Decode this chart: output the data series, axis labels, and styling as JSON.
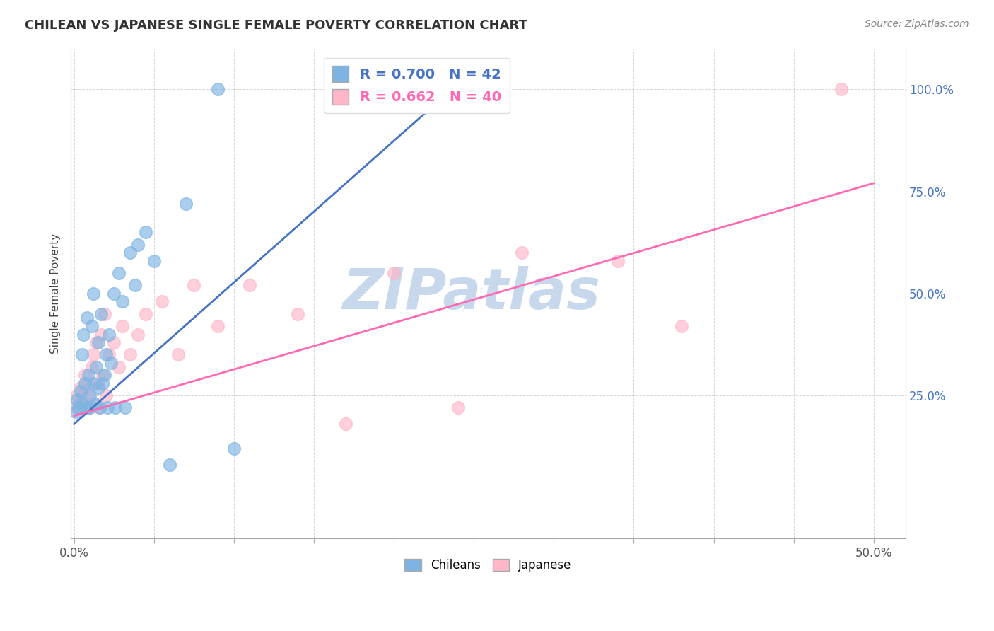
{
  "title": "CHILEAN VS JAPANESE SINGLE FEMALE POVERTY CORRELATION CHART",
  "source_text": "Source: ZipAtlas.com",
  "xlabel_ticks": [
    "0.0%",
    "",
    "",
    "",
    "",
    "",
    "",
    "",
    "",
    "",
    "50.0%"
  ],
  "x_tick_vals": [
    0.0,
    0.05,
    0.1,
    0.15,
    0.2,
    0.25,
    0.3,
    0.35,
    0.4,
    0.45,
    0.5
  ],
  "ylabel_ticks": [
    "25.0%",
    "50.0%",
    "75.0%",
    "100.0%"
  ],
  "y_tick_vals": [
    0.25,
    0.5,
    0.75,
    1.0
  ],
  "xlim": [
    -0.002,
    0.52
  ],
  "ylim": [
    -0.1,
    1.1
  ],
  "ylabel": "Single Female Poverty",
  "legend_blue_label": "R = 0.700   N = 42",
  "legend_pink_label": "R = 0.662   N = 40",
  "chilean_color": "#7EB4E2",
  "japanese_color": "#FFB6C8",
  "trendline_blue": "#4472C4",
  "trendline_pink": "#FF69B4",
  "background_color": "#FFFFFF",
  "grid_color": "#CCCCCC",
  "watermark_text": "ZIPatlas",
  "watermark_color": "#C8D8EC",
  "title_color": "#333333",
  "source_color": "#888888",
  "axis_label_color": "#444444",
  "ytick_color": "#4472C4",
  "xtick_color": "#555555",
  "chilean_x": [
    0.001,
    0.002,
    0.003,
    0.004,
    0.005,
    0.005,
    0.006,
    0.007,
    0.008,
    0.008,
    0.009,
    0.01,
    0.01,
    0.011,
    0.012,
    0.012,
    0.013,
    0.014,
    0.015,
    0.015,
    0.016,
    0.017,
    0.018,
    0.019,
    0.02,
    0.021,
    0.022,
    0.023,
    0.025,
    0.026,
    0.028,
    0.03,
    0.032,
    0.035,
    0.038,
    0.04,
    0.045,
    0.05,
    0.06,
    0.07,
    0.09,
    0.1
  ],
  "chilean_y": [
    0.21,
    0.24,
    0.22,
    0.26,
    0.23,
    0.35,
    0.4,
    0.28,
    0.22,
    0.44,
    0.3,
    0.25,
    0.22,
    0.42,
    0.28,
    0.5,
    0.23,
    0.32,
    0.27,
    0.38,
    0.22,
    0.45,
    0.28,
    0.3,
    0.35,
    0.22,
    0.4,
    0.33,
    0.5,
    0.22,
    0.55,
    0.48,
    0.22,
    0.6,
    0.52,
    0.62,
    0.65,
    0.58,
    0.08,
    0.72,
    1.0,
    0.12
  ],
  "japanese_x": [
    0.001,
    0.002,
    0.003,
    0.004,
    0.005,
    0.006,
    0.007,
    0.008,
    0.009,
    0.01,
    0.011,
    0.012,
    0.013,
    0.014,
    0.015,
    0.016,
    0.017,
    0.018,
    0.019,
    0.02,
    0.022,
    0.025,
    0.028,
    0.03,
    0.035,
    0.04,
    0.045,
    0.055,
    0.065,
    0.075,
    0.09,
    0.11,
    0.14,
    0.17,
    0.2,
    0.24,
    0.28,
    0.34,
    0.38,
    0.48
  ],
  "japanese_y": [
    0.22,
    0.25,
    0.23,
    0.27,
    0.24,
    0.26,
    0.3,
    0.28,
    0.25,
    0.22,
    0.32,
    0.35,
    0.23,
    0.38,
    0.28,
    0.22,
    0.4,
    0.3,
    0.45,
    0.25,
    0.35,
    0.38,
    0.32,
    0.42,
    0.35,
    0.4,
    0.45,
    0.48,
    0.35,
    0.52,
    0.42,
    0.52,
    0.45,
    0.18,
    0.55,
    0.22,
    0.6,
    0.58,
    0.42,
    1.0
  ],
  "trendline_blue_x0": 0.0,
  "trendline_blue_y0": 0.18,
  "trendline_blue_x1": 0.245,
  "trendline_blue_y1": 1.03,
  "trendline_pink_x0": 0.0,
  "trendline_pink_y0": 0.2,
  "trendline_pink_x1": 0.5,
  "trendline_pink_y1": 0.77
}
